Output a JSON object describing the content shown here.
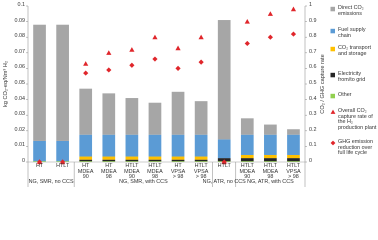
{
  "chart_data": {
    "type": "bar",
    "y_label": "kg CO₂-eq/Nm³ H₂",
    "y2_label": "CO₂ / GHG capture rate",
    "categories": [
      "HT",
      "HTLT",
      "HT MDEA 90",
      "HT MDEA 98",
      "HTLT MDEA 90",
      "HTLT MDEA 98",
      "HT VPSA > 98",
      "HTLT VPSA > 98",
      "HTLT",
      "HTLT MDEA 90",
      "HTLT MDEA 98",
      "HTLT VPSA > 98"
    ],
    "groups": [
      {
        "label": "NG, SMR, no CCS",
        "count": 2
      },
      {
        "label": "NG, SMR, with CCS",
        "count": 6
      },
      {
        "label": "NG, ATR, no CCS",
        "count": 1
      },
      {
        "label": "NG, ATR, with CCS",
        "count": 3
      }
    ],
    "series": [
      {
        "name": "Direct CO₂ emissions",
        "color": "#a6a6a6",
        "values": [
          0.0745,
          0.0745,
          0.0295,
          0.0265,
          0.0235,
          0.0205,
          0.0275,
          0.0215,
          0.0765,
          0.0105,
          0.0065,
          0.0035
        ]
      },
      {
        "name": "Fuel supply chain",
        "color": "#5b9bd5",
        "values": [
          0.013,
          0.013,
          0.014,
          0.014,
          0.014,
          0.014,
          0.014,
          0.014,
          0.012,
          0.013,
          0.013,
          0.013
        ]
      },
      {
        "name": "CO₂ transport and storage",
        "color": "#ffc000",
        "values": [
          0,
          0,
          0.002,
          0.002,
          0.002,
          0.002,
          0.002,
          0.002,
          0,
          0.002,
          0.002,
          0.002
        ]
      },
      {
        "name": "Electricity from/to grid",
        "color": "#262626",
        "values": [
          0,
          0,
          0.001,
          0.001,
          0.001,
          0.001,
          0.001,
          0.001,
          0.002,
          0.002,
          0.002,
          0.002
        ]
      },
      {
        "name": "Other",
        "color": "#92d050",
        "values": [
          0.0005,
          0.0005,
          0.0005,
          0.0005,
          0.0005,
          0.0005,
          0.0005,
          0.0005,
          0.0005,
          0.0005,
          0.0005,
          0.0005
        ]
      },
      {
        "name": "Overall CO₂ capture rate of the H₂ production plant",
        "color": "#e0262b",
        "type": "scatter",
        "marker": "triangle",
        "axis": "y2",
        "values": [
          0,
          0,
          0.63,
          0.7,
          0.72,
          0.8,
          0.73,
          0.8,
          0,
          0.9,
          0.95,
          0.98
        ]
      },
      {
        "name": "GHG emission reduction over full life cycle",
        "color": "#e0262b",
        "type": "scatter",
        "marker": "diamond",
        "axis": "y2",
        "values": [
          0,
          0,
          0.57,
          0.59,
          0.62,
          0.66,
          0.6,
          0.64,
          0,
          0.76,
          0.8,
          0.82
        ]
      }
    ],
    "ylim": [
      0,
      0.1
    ],
    "yticks": [
      0,
      0.01,
      0.02,
      0.03,
      0.04,
      0.05,
      0.06,
      0.07,
      0.08,
      0.09,
      0.1
    ],
    "y2lim": [
      0,
      1
    ],
    "y2ticks": [
      0,
      0.1,
      0.2,
      0.3,
      0.4,
      0.5,
      0.6,
      0.7,
      0.8,
      0.9,
      1
    ]
  }
}
